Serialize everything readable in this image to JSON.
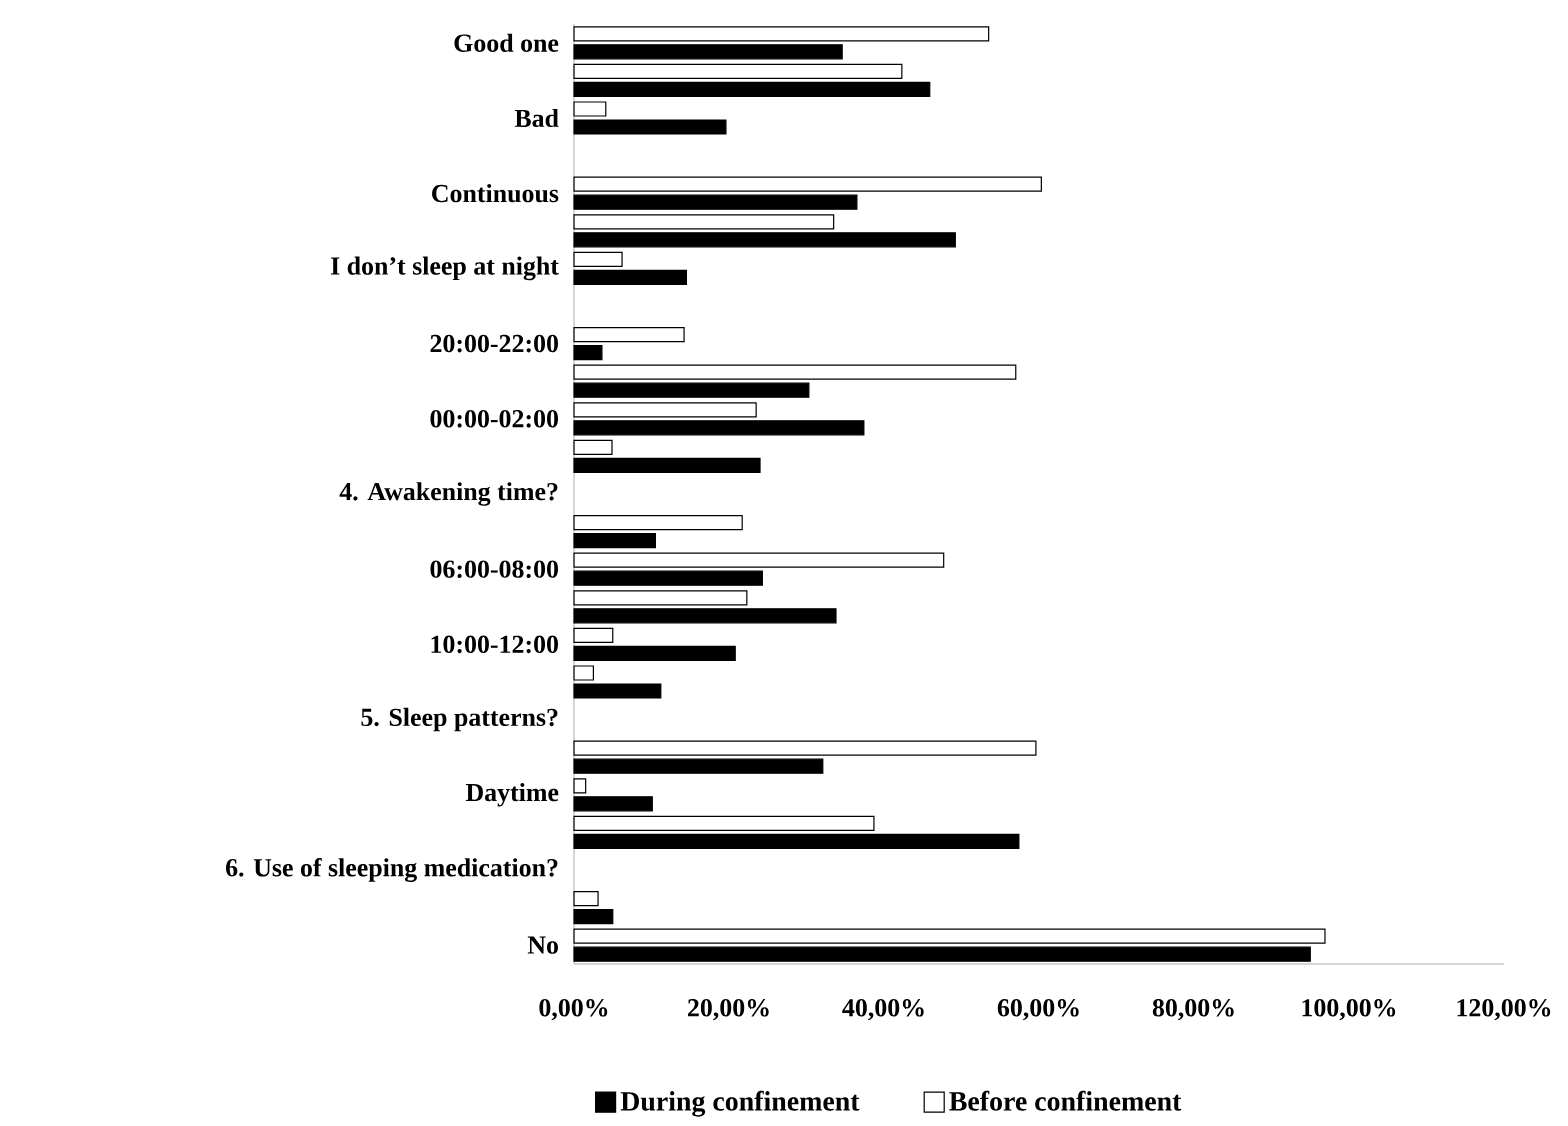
{
  "chart_data": {
    "type": "bar",
    "orientation": "horizontal",
    "categories": [
      "Good one",
      null,
      "Bad",
      null,
      "Continuous",
      null,
      "I don’t sleep at night",
      null,
      "20:00-22:00",
      null,
      "00:00-02:00",
      null,
      "4. Awakening time?",
      null,
      "06:00-08:00",
      null,
      "10:00-12:00",
      null,
      "5. Sleep patterns?",
      null,
      "Daytime",
      null,
      "6. Use of sleeping medication?",
      null,
      "No"
    ],
    "series": [
      {
        "name": "During confinement",
        "color": "#000000",
        "values": [
          34.6,
          45.9,
          19.6,
          null,
          36.5,
          49.2,
          14.5,
          null,
          3.6,
          30.3,
          37.4,
          24.0,
          null,
          10.5,
          24.3,
          33.8,
          20.8,
          11.2,
          null,
          32.1,
          10.1,
          57.4,
          null,
          5.0,
          95.0
        ]
      },
      {
        "name": "Before confinement",
        "color": "#ffffff",
        "values": [
          53.5,
          42.3,
          4.1,
          null,
          60.3,
          33.5,
          6.2,
          null,
          14.2,
          57.0,
          23.5,
          4.9,
          null,
          21.7,
          47.7,
          22.3,
          5.0,
          2.5,
          null,
          59.6,
          1.5,
          38.7,
          null,
          3.1,
          96.9
        ]
      }
    ],
    "xlim": [
      0,
      120
    ],
    "xticks": [
      {
        "value": 0,
        "label": "0,00%"
      },
      {
        "value": 20,
        "label": "20,00%"
      },
      {
        "value": 40,
        "label": "40,00%"
      },
      {
        "value": 60,
        "label": "60,00%"
      },
      {
        "value": 80,
        "label": "80,00%"
      },
      {
        "value": 100,
        "label": "100,00%"
      },
      {
        "value": 120,
        "label": "120,00%"
      }
    ],
    "legend": "bottom"
  }
}
